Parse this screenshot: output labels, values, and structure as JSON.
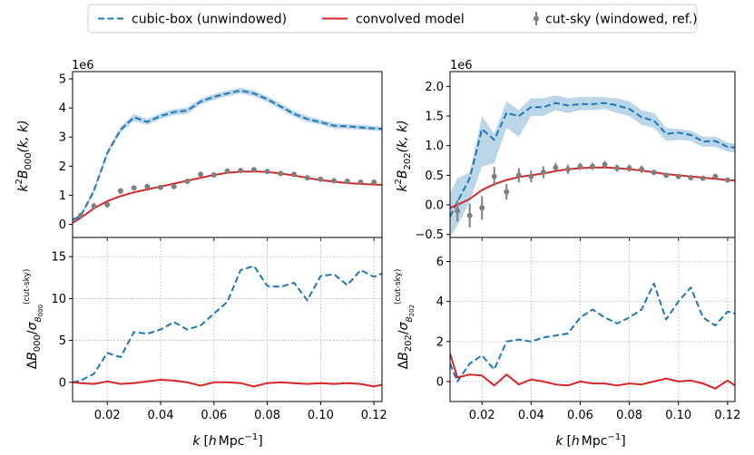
{
  "legend": {
    "entries": [
      {
        "label": "cubic-box (unwindowed)",
        "color": "#1f77b4",
        "style": "dashed"
      },
      {
        "label": "convolved model",
        "color": "#d62728",
        "style": "solid"
      },
      {
        "label": "cut-sky (windowed, ref.)",
        "color": "#7f7f7f",
        "style": "errorbar"
      }
    ]
  },
  "chart_data": [
    {
      "type": "line",
      "panel": "top-left",
      "offset_text": "1e6",
      "ylabel": "k^2 B_000(k,k)",
      "xlim": [
        0.007,
        0.123
      ],
      "ylim": [
        -0.45,
        5.25
      ],
      "xticks": [
        0.02,
        0.04,
        0.06,
        0.08,
        0.1,
        0.12
      ],
      "xticklabels": [
        "0.02",
        "0.04",
        "0.06",
        "0.08",
        "0.10",
        "0.12"
      ],
      "yticks": [
        0,
        1,
        2,
        3,
        4,
        5
      ],
      "yticklabels": [
        "0",
        "1",
        "2",
        "3",
        "4",
        "5"
      ],
      "grid": false,
      "band": {
        "x": [
          0.007,
          0.01,
          0.015,
          0.02,
          0.025,
          0.03,
          0.035,
          0.04,
          0.045,
          0.05,
          0.055,
          0.06,
          0.065,
          0.07,
          0.075,
          0.08,
          0.085,
          0.09,
          0.095,
          0.1,
          0.105,
          0.11,
          0.115,
          0.12,
          0.123
        ],
        "lower": [
          0.1,
          0.22,
          1.05,
          2.35,
          3.15,
          3.55,
          3.42,
          3.62,
          3.76,
          3.8,
          4.12,
          4.28,
          4.4,
          4.5,
          4.4,
          4.2,
          3.95,
          3.7,
          3.52,
          3.42,
          3.3,
          3.28,
          3.25,
          3.22,
          3.2
        ],
        "upper": [
          0.22,
          0.34,
          1.25,
          2.55,
          3.35,
          3.8,
          3.62,
          3.82,
          3.96,
          4.02,
          4.32,
          4.48,
          4.6,
          4.7,
          4.6,
          4.4,
          4.15,
          3.9,
          3.72,
          3.6,
          3.48,
          3.45,
          3.42,
          3.38,
          3.36
        ]
      },
      "series": [
        {
          "name": "cubic-box (unwindowed)",
          "x": [
            0.007,
            0.01,
            0.015,
            0.02,
            0.025,
            0.03,
            0.035,
            0.04,
            0.045,
            0.05,
            0.055,
            0.06,
            0.065,
            0.07,
            0.075,
            0.08,
            0.085,
            0.09,
            0.095,
            0.1,
            0.105,
            0.11,
            0.115,
            0.12,
            0.123
          ],
          "y": [
            0.16,
            0.28,
            1.15,
            2.45,
            3.25,
            3.68,
            3.52,
            3.72,
            3.86,
            3.91,
            4.22,
            4.38,
            4.5,
            4.6,
            4.5,
            4.3,
            4.05,
            3.8,
            3.62,
            3.51,
            3.39,
            3.37,
            3.33,
            3.3,
            3.28
          ]
        },
        {
          "name": "convolved model",
          "x": [
            0.007,
            0.01,
            0.015,
            0.02,
            0.025,
            0.03,
            0.035,
            0.04,
            0.045,
            0.05,
            0.055,
            0.06,
            0.065,
            0.07,
            0.075,
            0.08,
            0.085,
            0.09,
            0.095,
            0.1,
            0.105,
            0.11,
            0.115,
            0.12,
            0.123
          ],
          "y": [
            0.05,
            0.22,
            0.55,
            0.8,
            0.97,
            1.1,
            1.2,
            1.3,
            1.4,
            1.5,
            1.6,
            1.7,
            1.77,
            1.81,
            1.82,
            1.8,
            1.75,
            1.68,
            1.6,
            1.52,
            1.47,
            1.42,
            1.39,
            1.37,
            1.36
          ]
        },
        {
          "name": "cut-sky (windowed, ref.)",
          "x": [
            0.01,
            0.015,
            0.02,
            0.025,
            0.03,
            0.035,
            0.04,
            0.045,
            0.05,
            0.055,
            0.06,
            0.065,
            0.07,
            0.075,
            0.08,
            0.085,
            0.09,
            0.095,
            0.1,
            0.105,
            0.11,
            0.115,
            0.12
          ],
          "y": [
            0.3,
            0.62,
            0.68,
            1.15,
            1.25,
            1.3,
            1.27,
            1.3,
            1.48,
            1.72,
            1.7,
            1.83,
            1.85,
            1.88,
            1.82,
            1.75,
            1.72,
            1.6,
            1.55,
            1.5,
            1.48,
            1.45,
            1.45
          ],
          "err": [
            0.1,
            0.12,
            0.1,
            0.1,
            0.08,
            0.08,
            0.08,
            0.08,
            0.08,
            0.08,
            0.08,
            0.08,
            0.08,
            0.08,
            0.08,
            0.08,
            0.08,
            0.08,
            0.08,
            0.08,
            0.08,
            0.08,
            0.08
          ]
        }
      ]
    },
    {
      "type": "line",
      "panel": "bottom-left",
      "ylabel": "ΔB_000 / σ_B000^(cut-sky)",
      "xlabel": "k [h Mpc^-1]",
      "xlim": [
        0.007,
        0.123
      ],
      "ylim": [
        -2.3,
        17.3
      ],
      "xticks": [
        0.02,
        0.04,
        0.06,
        0.08,
        0.1,
        0.12
      ],
      "xticklabels": [
        "0.02",
        "0.04",
        "0.06",
        "0.08",
        "0.10",
        "0.12"
      ],
      "yticks": [
        0,
        5,
        10,
        15
      ],
      "yticklabels": [
        "0",
        "5",
        "10",
        "15"
      ],
      "grid": true,
      "series": [
        {
          "name": "cubic-box (unwindowed)",
          "x": [
            0.007,
            0.01,
            0.015,
            0.02,
            0.025,
            0.03,
            0.035,
            0.04,
            0.045,
            0.05,
            0.055,
            0.06,
            0.065,
            0.07,
            0.075,
            0.08,
            0.085,
            0.09,
            0.095,
            0.1,
            0.105,
            0.11,
            0.115,
            0.12,
            0.123
          ],
          "y": [
            0.0,
            0.2,
            1.0,
            3.5,
            3.0,
            6.0,
            5.8,
            6.3,
            7.2,
            6.3,
            6.8,
            8.2,
            9.6,
            13.4,
            13.9,
            11.5,
            11.4,
            11.9,
            9.8,
            12.7,
            12.9,
            11.6,
            13.4,
            12.6,
            13.0
          ]
        },
        {
          "name": "convolved model",
          "x": [
            0.007,
            0.01,
            0.015,
            0.02,
            0.025,
            0.03,
            0.035,
            0.04,
            0.045,
            0.05,
            0.055,
            0.06,
            0.065,
            0.07,
            0.075,
            0.08,
            0.085,
            0.09,
            0.095,
            0.1,
            0.105,
            0.11,
            0.115,
            0.12,
            0.123
          ],
          "y": [
            0.0,
            -0.1,
            -0.2,
            0.1,
            -0.2,
            -0.1,
            0.1,
            0.3,
            0.2,
            0.0,
            -0.4,
            0.0,
            0.0,
            -0.1,
            -0.5,
            -0.1,
            0.0,
            -0.1,
            -0.2,
            -0.1,
            -0.2,
            -0.1,
            -0.2,
            -0.5,
            -0.3
          ]
        }
      ]
    },
    {
      "type": "line",
      "panel": "top-right",
      "offset_text": "1e6",
      "ylabel": "k^2 B_202(k,k)",
      "xlim": [
        0.007,
        0.123
      ],
      "ylim": [
        -0.55,
        2.25
      ],
      "xticks": [
        0.02,
        0.04,
        0.06,
        0.08,
        0.1,
        0.12
      ],
      "xticklabels": [
        "0.02",
        "0.04",
        "0.06",
        "0.08",
        "0.10",
        "0.12"
      ],
      "yticks": [
        -0.5,
        0.0,
        0.5,
        1.0,
        1.5,
        2.0
      ],
      "yticklabels": [
        "−0.5",
        "0.0",
        "0.5",
        "1.0",
        "1.5",
        "2.0"
      ],
      "grid": false,
      "band": {
        "x": [
          0.007,
          0.01,
          0.015,
          0.02,
          0.025,
          0.03,
          0.035,
          0.04,
          0.045,
          0.05,
          0.055,
          0.06,
          0.065,
          0.07,
          0.075,
          0.08,
          0.085,
          0.09,
          0.095,
          0.1,
          0.105,
          0.11,
          0.115,
          0.12,
          0.123
        ],
        "lower": [
          -0.55,
          -0.35,
          0.05,
          0.65,
          0.7,
          1.3,
          1.15,
          1.5,
          1.5,
          1.6,
          1.55,
          1.6,
          1.6,
          1.62,
          1.55,
          1.5,
          1.35,
          1.3,
          1.08,
          1.1,
          1.08,
          0.98,
          0.98,
          0.9,
          0.88
        ],
        "upper": [
          0.2,
          0.45,
          0.55,
          1.5,
          1.2,
          1.75,
          1.6,
          1.8,
          1.8,
          1.85,
          1.8,
          1.82,
          1.82,
          1.82,
          1.8,
          1.75,
          1.6,
          1.55,
          1.3,
          1.28,
          1.25,
          1.15,
          1.15,
          1.05,
          1.03
        ]
      },
      "series": [
        {
          "name": "cubic-box (unwindowed)",
          "x": [
            0.007,
            0.01,
            0.015,
            0.02,
            0.025,
            0.03,
            0.035,
            0.04,
            0.045,
            0.05,
            0.055,
            0.06,
            0.065,
            0.07,
            0.075,
            0.08,
            0.085,
            0.09,
            0.095,
            0.1,
            0.105,
            0.11,
            0.115,
            0.12,
            0.123
          ],
          "y": [
            -0.2,
            0.05,
            0.45,
            1.28,
            1.1,
            1.55,
            1.5,
            1.65,
            1.65,
            1.72,
            1.68,
            1.7,
            1.7,
            1.72,
            1.68,
            1.62,
            1.48,
            1.42,
            1.2,
            1.22,
            1.18,
            1.07,
            1.08,
            0.98,
            0.97
          ]
        },
        {
          "name": "convolved model",
          "x": [
            0.007,
            0.01,
            0.015,
            0.02,
            0.025,
            0.03,
            0.035,
            0.04,
            0.045,
            0.05,
            0.055,
            0.06,
            0.065,
            0.07,
            0.075,
            0.08,
            0.085,
            0.09,
            0.095,
            0.1,
            0.105,
            0.11,
            0.115,
            0.12,
            0.123
          ],
          "y": [
            -0.05,
            0.0,
            0.1,
            0.25,
            0.35,
            0.42,
            0.47,
            0.5,
            0.53,
            0.57,
            0.6,
            0.62,
            0.63,
            0.63,
            0.62,
            0.6,
            0.58,
            0.55,
            0.52,
            0.5,
            0.48,
            0.46,
            0.44,
            0.42,
            0.41
          ]
        },
        {
          "name": "cut-sky (windowed, ref.)",
          "x": [
            0.01,
            0.015,
            0.02,
            0.025,
            0.03,
            0.035,
            0.04,
            0.045,
            0.05,
            0.055,
            0.06,
            0.065,
            0.07,
            0.075,
            0.08,
            0.085,
            0.09,
            0.095,
            0.1,
            0.105,
            0.11,
            0.115,
            0.12
          ],
          "y": [
            -0.1,
            -0.18,
            -0.05,
            0.48,
            0.22,
            0.5,
            0.48,
            0.55,
            0.63,
            0.6,
            0.65,
            0.65,
            0.68,
            0.62,
            0.62,
            0.6,
            0.55,
            0.5,
            0.48,
            0.46,
            0.45,
            0.48,
            0.42
          ],
          "err": [
            0.18,
            0.2,
            0.2,
            0.16,
            0.13,
            0.12,
            0.1,
            0.1,
            0.08,
            0.08,
            0.06,
            0.06,
            0.06,
            0.06,
            0.06,
            0.06,
            0.04,
            0.04,
            0.04,
            0.04,
            0.04,
            0.04,
            0.04
          ]
        }
      ]
    },
    {
      "type": "line",
      "panel": "bottom-right",
      "ylabel": "ΔB_202 / σ_B202^(cut-sky)",
      "xlabel": "k [h Mpc^-1]",
      "xlim": [
        0.007,
        0.123
      ],
      "ylim": [
        -1.0,
        7.2
      ],
      "xticks": [
        0.02,
        0.04,
        0.06,
        0.08,
        0.1,
        0.12
      ],
      "xticklabels": [
        "0.02",
        "0.04",
        "0.06",
        "0.08",
        "0.10",
        "0.12"
      ],
      "yticks": [
        0,
        2,
        4,
        6
      ],
      "yticklabels": [
        "0",
        "2",
        "4",
        "6"
      ],
      "grid": true,
      "series": [
        {
          "name": "cubic-box (unwindowed)",
          "x": [
            0.007,
            0.01,
            0.015,
            0.02,
            0.025,
            0.03,
            0.035,
            0.04,
            0.045,
            0.05,
            0.055,
            0.06,
            0.065,
            0.07,
            0.075,
            0.08,
            0.085,
            0.09,
            0.095,
            0.1,
            0.105,
            0.11,
            0.115,
            0.12,
            0.123
          ],
          "y": [
            0.9,
            0.0,
            0.9,
            1.3,
            0.6,
            2.0,
            2.1,
            2.0,
            2.2,
            2.3,
            2.4,
            3.2,
            3.6,
            3.2,
            2.9,
            3.2,
            3.6,
            4.9,
            3.1,
            4.0,
            4.7,
            3.2,
            2.8,
            3.5,
            3.4
          ]
        },
        {
          "name": "convolved model",
          "x": [
            0.007,
            0.01,
            0.015,
            0.02,
            0.025,
            0.03,
            0.035,
            0.04,
            0.045,
            0.05,
            0.055,
            0.06,
            0.065,
            0.07,
            0.075,
            0.08,
            0.085,
            0.09,
            0.095,
            0.1,
            0.105,
            0.11,
            0.115,
            0.12,
            0.123
          ],
          "y": [
            1.4,
            0.2,
            0.35,
            0.3,
            -0.2,
            0.35,
            -0.15,
            0.1,
            0.0,
            -0.15,
            -0.2,
            0.0,
            -0.1,
            -0.1,
            -0.2,
            -0.1,
            -0.15,
            0.0,
            0.15,
            0.0,
            0.05,
            -0.1,
            -0.35,
            0.05,
            -0.2
          ]
        }
      ]
    }
  ],
  "xlabel_text": {
    "k": "k",
    "unit_open": "[",
    "h": "h",
    "mpc": "Mpc",
    "sup": "−1",
    "unit_close": "]"
  },
  "ylabel_parts": {
    "top_left": {
      "k": "k",
      "k_sup": "2",
      "B": "B",
      "sub": "000",
      "args": "(k, k)"
    },
    "top_right": {
      "k": "k",
      "k_sup": "2",
      "B": "B",
      "sub": "202",
      "args": "(k, k)"
    },
    "bottom_left": {
      "delta": "Δ",
      "B": "B",
      "sub": "000",
      "slash": "/",
      "sigma": "σ",
      "sigma_sub": "B",
      "sigma_subsub": "000",
      "sup": "(cut-sky)"
    },
    "bottom_right": {
      "delta": "Δ",
      "B": "B",
      "sub": "202",
      "slash": "/",
      "sigma": "σ",
      "sigma_sub": "B",
      "sigma_subsub": "202",
      "sup": "(cut-sky)"
    }
  },
  "offset_labels": {
    "top_left": "1e6",
    "top_right": "1e6"
  }
}
